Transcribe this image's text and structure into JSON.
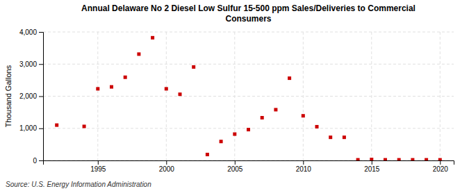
{
  "chart_data": {
    "type": "scatter",
    "title": "Annual Delaware No 2 Diesel Low Sulfur 15-500 ppm Sales/Deliveries to Commercial\nConsumers",
    "ylabel": "Thousand Gallons",
    "annotations": [
      "Source: U.S. Energy Information Administration"
    ],
    "x": [
      1992,
      1994,
      1995,
      1996,
      1997,
      1998,
      1999,
      2000,
      2001,
      2002,
      2003,
      2004,
      2005,
      2006,
      2007,
      2008,
      2009,
      2010,
      2011,
      2012,
      2013,
      2014,
      2015,
      2016,
      2017,
      2018,
      2019,
      2020
    ],
    "values": [
      1100,
      1060,
      2230,
      2290,
      2590,
      3310,
      3820,
      2230,
      2060,
      2910,
      185,
      590,
      820,
      960,
      1330,
      1580,
      2560,
      1390,
      1050,
      720,
      720,
      20,
      30,
      20,
      20,
      20,
      20,
      20
    ],
    "color": "#cc0000",
    "marker": "square",
    "xlim": [
      1991,
      2021
    ],
    "xticks": [
      1995,
      2000,
      2005,
      2010,
      2015,
      2020
    ],
    "ylim": [
      0,
      4000
    ],
    "yticks": [
      0,
      {
        "value": 1000,
        "label": "1,000"
      },
      {
        "value": 2000,
        "label": "2,000"
      },
      {
        "value": 3000,
        "label": "3,000"
      },
      {
        "value": 4000,
        "label": "4,000"
      }
    ],
    "grid": true
  }
}
